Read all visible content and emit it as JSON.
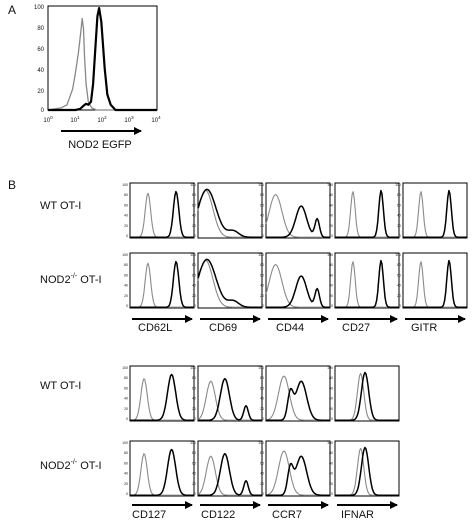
{
  "panel_a": {
    "label": "A",
    "xlabel": "NOD2 EGFP",
    "y_ticks": [
      "100",
      "80",
      "60",
      "40",
      "20",
      "0"
    ],
    "x_ticks": [
      {
        "base": "10",
        "exp": "0"
      },
      {
        "base": "10",
        "exp": "1"
      },
      {
        "base": "10",
        "exp": "2"
      },
      {
        "base": "10",
        "exp": "3"
      },
      {
        "base": "10",
        "exp": "4"
      }
    ]
  },
  "panel_b": {
    "label": "B",
    "group1": {
      "row_labels": [
        {
          "base": "WT OT-I",
          "sup": "",
          "tail": ""
        },
        {
          "base": "NOD2",
          "sup": "-/-",
          "tail": " OT-I"
        }
      ],
      "markers": [
        "CD62L",
        "CD69",
        "CD44",
        "CD27",
        "GITR"
      ]
    },
    "group2": {
      "row_labels": [
        {
          "base": "WT OT-I",
          "sup": "",
          "tail": ""
        },
        {
          "base": "NOD2",
          "sup": "-/-",
          "tail": " OT-I"
        }
      ],
      "markers": [
        "CD127",
        "CD122",
        "CCR7",
        "IFNAR"
      ]
    },
    "mini_y_ticks": [
      "100",
      "80",
      "60",
      "40",
      "20",
      "0"
    ]
  },
  "chart_data": [
    {
      "type": "line",
      "title": "",
      "xlabel": "NOD2 EGFP",
      "ylabel": "",
      "xscale": "log",
      "xlim": [
        1,
        10000
      ],
      "ylim": [
        0,
        100
      ],
      "series": [
        {
          "style": "thin-gray",
          "x": [
            1,
            3,
            5,
            8,
            10,
            13,
            16,
            18,
            20,
            22,
            25,
            30,
            40,
            60,
            100,
            10000
          ],
          "y": [
            0,
            2,
            5,
            20,
            35,
            55,
            75,
            88,
            78,
            50,
            25,
            8,
            2,
            0,
            0,
            0
          ]
        },
        {
          "style": "thick-black",
          "x": [
            1,
            10,
            15,
            20,
            25,
            30,
            38,
            45,
            55,
            65,
            75,
            90,
            120,
            150,
            200,
            300,
            10000
          ],
          "y": [
            0,
            0,
            1,
            4,
            6,
            5,
            8,
            25,
            60,
            90,
            98,
            85,
            40,
            15,
            5,
            0,
            0
          ]
        }
      ]
    }
  ]
}
